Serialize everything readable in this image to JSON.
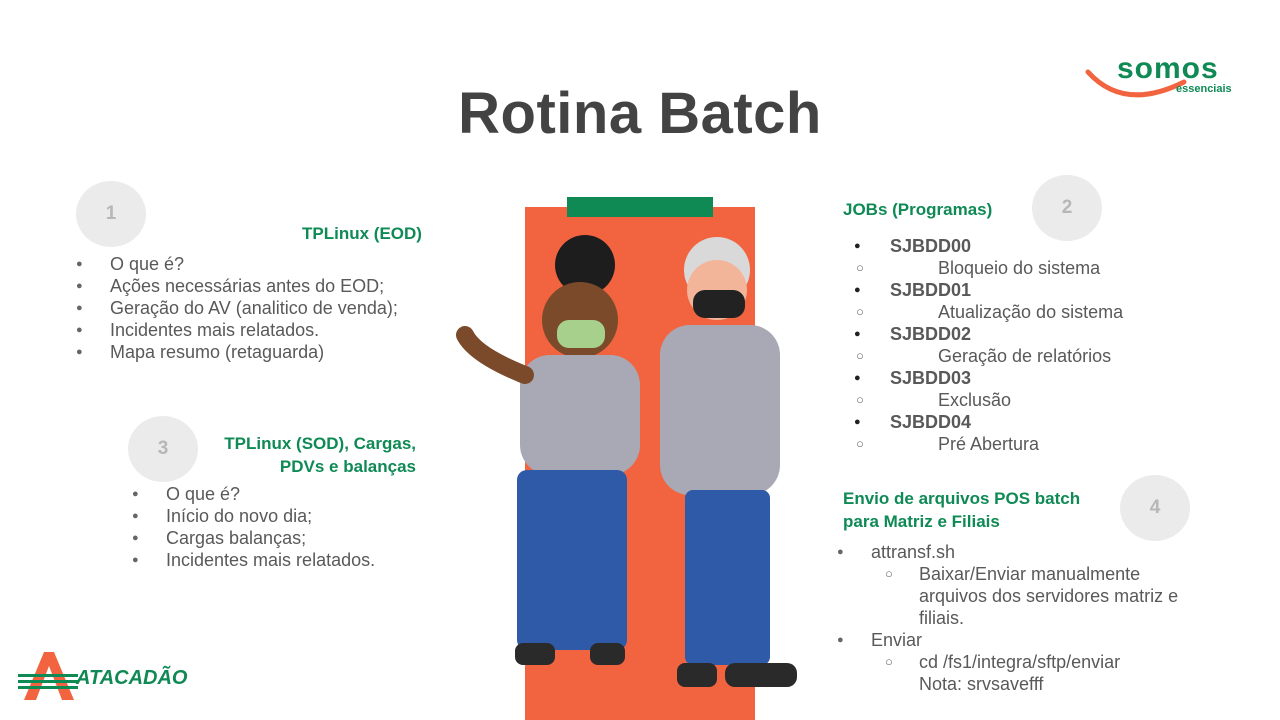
{
  "title": "Rotina Batch",
  "brand": {
    "somos_main": "somos",
    "somos_sub": "essenciais",
    "atacadao": "ATACADÃO"
  },
  "section1": {
    "number": "1",
    "heading": "TPLinux (EOD)",
    "items": [
      "O que é?",
      "Ações necessárias antes do EOD;",
      "Geração do AV (analitico de venda);",
      "Incidentes mais relatados.",
      "Mapa resumo (retaguarda)"
    ]
  },
  "section2": {
    "number": "2",
    "heading": "JOBs (Programas)",
    "jobs": [
      {
        "name": "SJBDD00",
        "desc": "Bloqueio do sistema"
      },
      {
        "name": "SJBDD01",
        "desc": "Atualização do sistema"
      },
      {
        "name": "SJBDD02",
        "desc": "Geração de relatórios"
      },
      {
        "name": "SJBDD03",
        "desc": "Exclusão"
      },
      {
        "name": "SJBDD04",
        "desc": "Pré Abertura"
      }
    ]
  },
  "section3": {
    "number": "3",
    "heading_line1": "TPLinux (SOD), Cargas,",
    "heading_line2": "PDVs e balanças",
    "items": [
      "O que é?",
      "Início do novo dia;",
      "Cargas balanças;",
      "Incidentes mais relatados."
    ]
  },
  "section4": {
    "number": "4",
    "heading_line1": "Envio de arquivos POS batch",
    "heading_line2": "para Matriz e Filiais",
    "item1": "attransf.sh",
    "item1_sub1": "Baixar/Enviar manualmente",
    "item1_sub2": "arquivos dos servidores matriz e",
    "item1_sub3": "filiais.",
    "item2": "Enviar",
    "item2_sub1": "cd /fs1/integra/sftp/enviar",
    "item2_sub2": "Nota: srvsavefff"
  },
  "colors": {
    "accent_green": "#0f8a55",
    "panel_orange": "#f26440",
    "circle_gray": "#ebebeb",
    "title": "#434343"
  }
}
